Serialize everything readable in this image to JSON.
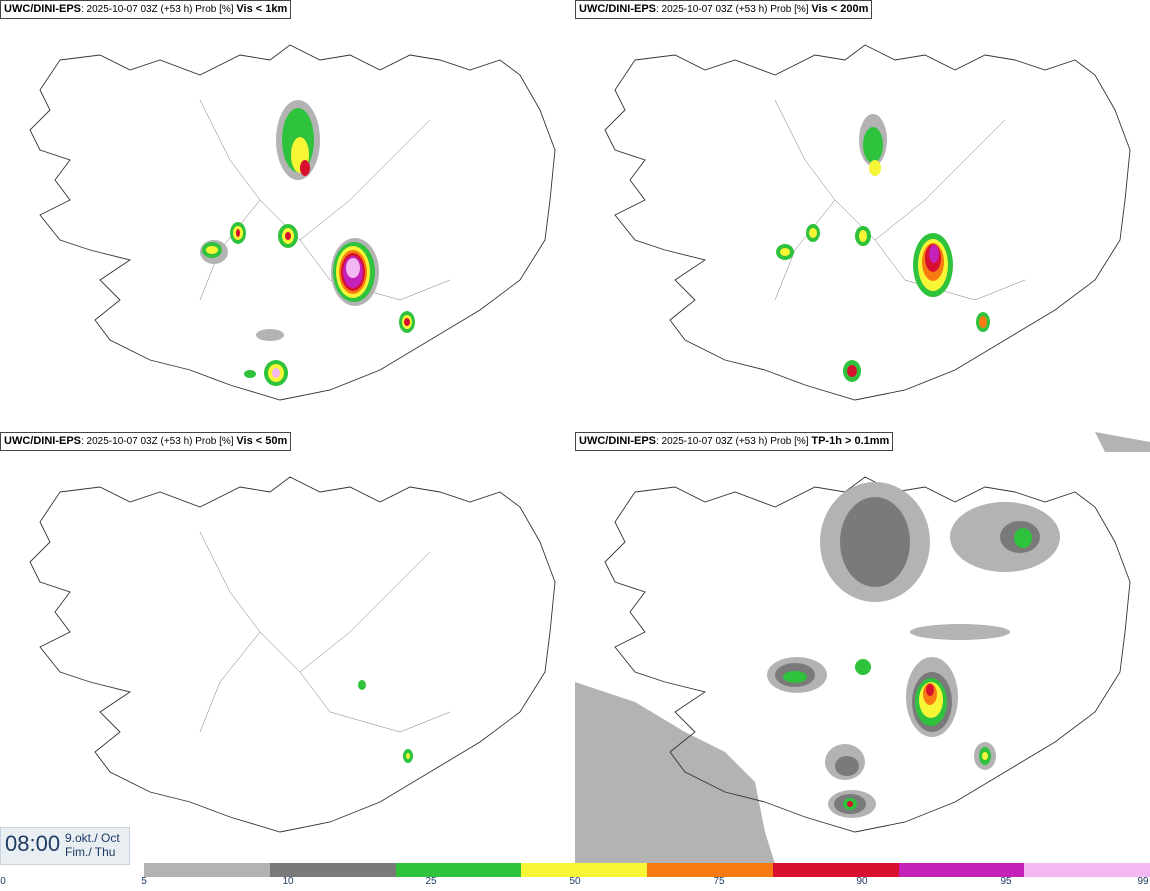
{
  "panels": [
    {
      "model": "UWC/DINI-EPS",
      "run": ": 2025-10-07 03Z (+53 h) Prob [%]",
      "variable": "Vis < 1km"
    },
    {
      "model": "UWC/DINI-EPS",
      "run": ": 2025-10-07 03Z (+53 h) Prob [%]",
      "variable": "Vis < 200m"
    },
    {
      "model": "UWC/DINI-EPS",
      "run": ": 2025-10-07 03Z (+53 h) Prob [%]",
      "variable": "Vis < 50m"
    },
    {
      "model": "UWC/DINI-EPS",
      "run": ": 2025-10-07 03Z (+53 h) Prob [%]",
      "variable": "TP-1h > 0.1mm"
    }
  ],
  "valid_time": {
    "time": "08:00",
    "date_line1": "9.okt./ Oct",
    "date_line2": "Fim./ Thu"
  },
  "colorbar": {
    "ticks": [
      "0",
      "5",
      "10",
      "25",
      "50",
      "75",
      "90",
      "95",
      "99"
    ],
    "colors": [
      "#b3b3b3",
      "#7a7a7a",
      "#2fc23d",
      "#f6f636",
      "#f77b10",
      "#d8102f",
      "#c321b8",
      "#f3b8f3"
    ]
  }
}
